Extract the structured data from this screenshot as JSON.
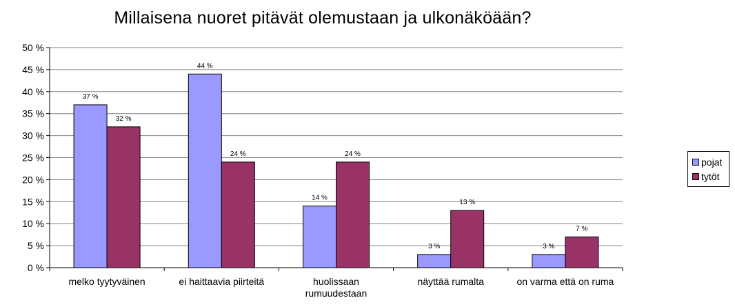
{
  "chart_data": {
    "type": "bar",
    "title": "Millaisena nuoret pitävät olemustaan ja ulkonäköään?",
    "categories": [
      "melko tyytyväinen",
      "ei haittaavia piirteitä",
      "huolissaan rumuudestaan",
      "näyttää rumalta",
      "on varma että on ruma"
    ],
    "category_lines": [
      [
        "melko tyytyväinen"
      ],
      [
        "ei haittaavia piirteitä"
      ],
      [
        "huolissaan",
        "rumuudestaan"
      ],
      [
        "näyttää rumalta"
      ],
      [
        "on varma että on ruma"
      ]
    ],
    "series": [
      {
        "name": "pojat",
        "values": [
          37,
          44,
          14,
          3,
          3
        ],
        "labels": [
          "37 %",
          "44 %",
          "14 %",
          "3 %",
          "3 %"
        ],
        "color": "#9999FF"
      },
      {
        "name": "tytöt",
        "values": [
          32,
          24,
          24,
          13,
          7
        ],
        "labels": [
          "32 %",
          "24 %",
          "24 %",
          "13 %",
          "7 %"
        ],
        "color": "#993366"
      }
    ],
    "ylim": [
      0,
      50
    ],
    "yticks": [
      0,
      5,
      10,
      15,
      20,
      25,
      30,
      35,
      40,
      45,
      50
    ],
    "ytick_labels": [
      "0 %",
      "5 %",
      "10 %",
      "15 %",
      "20 %",
      "25 %",
      "30 %",
      "35 %",
      "40 %",
      "45 %",
      "50 %"
    ],
    "grid": true,
    "legend_position": "right"
  }
}
